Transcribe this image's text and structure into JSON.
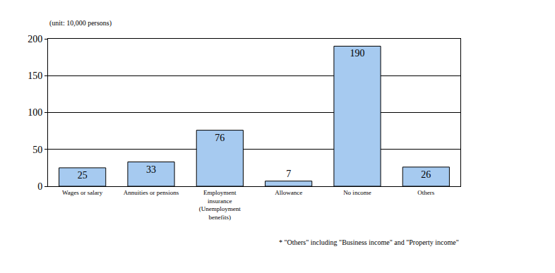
{
  "chart_data": {
    "type": "bar",
    "ylabel": "(unit: 10,000 persons)",
    "categories": [
      "Wages or salary",
      "Annuities or pensions",
      "Employment insurance (Unemployment benefits)",
      "Allowance",
      "No income",
      "Others"
    ],
    "values": [
      25,
      33,
      76,
      7,
      190,
      26
    ],
    "color": "#a6caf0",
    "ylim": [
      0,
      200
    ],
    "yticks": [
      0,
      50,
      100,
      150,
      200
    ],
    "grid": true,
    "data_labels": true,
    "annotations": [
      "* \"Others\" including \"Business income\" and \"Property income\""
    ]
  }
}
